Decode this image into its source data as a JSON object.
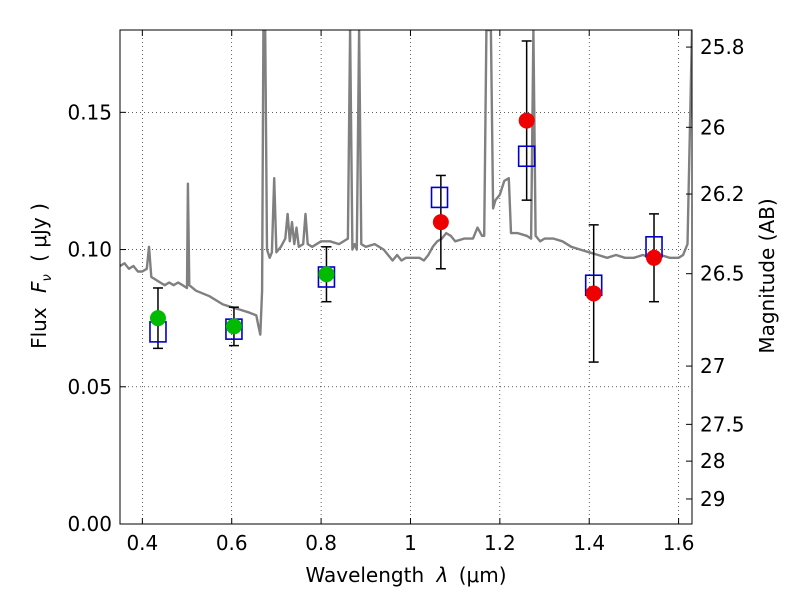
{
  "chart_data": {
    "type": "scatter",
    "xlabel": "Wavelength",
    "xlabel_symbol": "λ",
    "xlabel_unit": "(μm)",
    "ylabel": "Flux",
    "ylabel_symbol": "F_ν",
    "ylabel_unit": "( μJy )",
    "y2label": "Magnitude (AB)",
    "xlim": [
      0.35,
      1.63
    ],
    "ylim": [
      0.0,
      0.18
    ],
    "xticks": [
      {
        "value": 0.4,
        "label": "0.4"
      },
      {
        "value": 0.6,
        "label": "0.6"
      },
      {
        "value": 0.8,
        "label": "0.8"
      },
      {
        "value": 1.0,
        "label": "1"
      },
      {
        "value": 1.2,
        "label": "1.2"
      },
      {
        "value": 1.4,
        "label": "1.4"
      },
      {
        "value": 1.6,
        "label": "1.6"
      }
    ],
    "yticks": [
      {
        "value": 0.0,
        "label": "0.00"
      },
      {
        "value": 0.05,
        "label": "0.05"
      },
      {
        "value": 0.1,
        "label": "0.10"
      },
      {
        "value": 0.15,
        "label": "0.15"
      }
    ],
    "y2ticks": [
      {
        "mag": 25.8,
        "label": "25.8"
      },
      {
        "mag": 26.0,
        "label": "26"
      },
      {
        "mag": 26.2,
        "label": "26.2"
      },
      {
        "mag": 26.5,
        "label": "26.5"
      },
      {
        "mag": 27.0,
        "label": "27"
      },
      {
        "mag": 27.5,
        "label": "27.5"
      },
      {
        "mag": 28.0,
        "label": "28"
      },
      {
        "mag": 29.0,
        "label": "29"
      }
    ],
    "grid": true,
    "spectrum": {
      "color": "#808080",
      "points": [
        [
          0.35,
          0.094
        ],
        [
          0.36,
          0.095
        ],
        [
          0.37,
          0.093
        ],
        [
          0.38,
          0.094
        ],
        [
          0.39,
          0.092
        ],
        [
          0.4,
          0.092
        ],
        [
          0.41,
          0.093
        ],
        [
          0.415,
          0.101
        ],
        [
          0.42,
          0.09
        ],
        [
          0.43,
          0.089
        ],
        [
          0.44,
          0.088
        ],
        [
          0.45,
          0.087
        ],
        [
          0.46,
          0.088
        ],
        [
          0.47,
          0.087
        ],
        [
          0.48,
          0.088
        ],
        [
          0.49,
          0.087
        ],
        [
          0.5,
          0.086
        ],
        [
          0.502,
          0.124
        ],
        [
          0.505,
          0.087
        ],
        [
          0.52,
          0.085
        ],
        [
          0.55,
          0.083
        ],
        [
          0.58,
          0.08
        ],
        [
          0.6,
          0.079
        ],
        [
          0.62,
          0.078
        ],
        [
          0.64,
          0.077
        ],
        [
          0.655,
          0.076
        ],
        [
          0.66,
          0.072
        ],
        [
          0.664,
          0.069
        ],
        [
          0.668,
          0.085
        ],
        [
          0.671,
          0.18
        ],
        [
          0.675,
          0.18
        ],
        [
          0.679,
          0.1
        ],
        [
          0.685,
          0.097
        ],
        [
          0.69,
          0.099
        ],
        [
          0.695,
          0.126
        ],
        [
          0.7,
          0.099
        ],
        [
          0.71,
          0.101
        ],
        [
          0.72,
          0.104
        ],
        [
          0.725,
          0.113
        ],
        [
          0.73,
          0.103
        ],
        [
          0.735,
          0.11
        ],
        [
          0.74,
          0.102
        ],
        [
          0.745,
          0.108
        ],
        [
          0.75,
          0.101
        ],
        [
          0.76,
          0.102
        ],
        [
          0.765,
          0.113
        ],
        [
          0.77,
          0.102
        ],
        [
          0.78,
          0.101
        ],
        [
          0.8,
          0.103
        ],
        [
          0.82,
          0.103
        ],
        [
          0.84,
          0.102
        ],
        [
          0.86,
          0.104
        ],
        [
          0.865,
          0.18
        ],
        [
          0.87,
          0.1
        ],
        [
          0.875,
          0.102
        ],
        [
          0.88,
          0.1
        ],
        [
          0.885,
          0.18
        ],
        [
          0.89,
          0.102
        ],
        [
          0.9,
          0.101
        ],
        [
          0.92,
          0.102
        ],
        [
          0.94,
          0.1
        ],
        [
          0.95,
          0.098
        ],
        [
          0.96,
          0.096
        ],
        [
          0.97,
          0.098
        ],
        [
          0.98,
          0.096
        ],
        [
          0.99,
          0.097
        ],
        [
          1.0,
          0.097
        ],
        [
          1.02,
          0.097
        ],
        [
          1.03,
          0.096
        ],
        [
          1.04,
          0.098
        ],
        [
          1.05,
          0.101
        ],
        [
          1.06,
          0.103
        ],
        [
          1.07,
          0.104
        ],
        [
          1.08,
          0.106
        ],
        [
          1.09,
          0.105
        ],
        [
          1.1,
          0.103
        ],
        [
          1.12,
          0.104
        ],
        [
          1.14,
          0.104
        ],
        [
          1.15,
          0.108
        ],
        [
          1.16,
          0.105
        ],
        [
          1.165,
          0.105
        ],
        [
          1.17,
          0.18
        ],
        [
          1.18,
          0.18
        ],
        [
          1.185,
          0.115
        ],
        [
          1.19,
          0.118
        ],
        [
          1.2,
          0.12
        ],
        [
          1.21,
          0.125
        ],
        [
          1.22,
          0.126
        ],
        [
          1.225,
          0.106
        ],
        [
          1.24,
          0.106
        ],
        [
          1.26,
          0.105
        ],
        [
          1.27,
          0.104
        ],
        [
          1.275,
          0.18
        ],
        [
          1.28,
          0.105
        ],
        [
          1.29,
          0.103
        ],
        [
          1.3,
          0.104
        ],
        [
          1.32,
          0.104
        ],
        [
          1.34,
          0.103
        ],
        [
          1.36,
          0.101
        ],
        [
          1.38,
          0.1
        ],
        [
          1.4,
          0.099
        ],
        [
          1.42,
          0.098
        ],
        [
          1.44,
          0.097
        ],
        [
          1.46,
          0.098
        ],
        [
          1.48,
          0.097
        ],
        [
          1.5,
          0.097
        ],
        [
          1.52,
          0.098
        ],
        [
          1.54,
          0.097
        ],
        [
          1.56,
          0.098
        ],
        [
          1.58,
          0.097
        ],
        [
          1.6,
          0.097
        ],
        [
          1.61,
          0.098
        ],
        [
          1.62,
          0.102
        ],
        [
          1.63,
          0.18
        ]
      ]
    },
    "model_points": {
      "color": "#0000cc",
      "marker": "open-square",
      "points": [
        [
          0.435,
          0.07
        ],
        [
          0.605,
          0.071
        ],
        [
          0.812,
          0.09
        ],
        [
          1.065,
          0.119
        ],
        [
          1.26,
          0.134
        ],
        [
          1.41,
          0.087
        ],
        [
          1.545,
          0.101
        ]
      ]
    },
    "observed_points": [
      {
        "x": 0.435,
        "y": 0.075,
        "err": 0.011,
        "color": "#00bb00"
      },
      {
        "x": 0.605,
        "y": 0.072,
        "err": 0.007,
        "color": "#00bb00"
      },
      {
        "x": 0.812,
        "y": 0.091,
        "err": 0.01,
        "color": "#00bb00"
      },
      {
        "x": 1.068,
        "y": 0.11,
        "err": 0.017,
        "color": "#ee0000"
      },
      {
        "x": 1.26,
        "y": 0.147,
        "err": 0.029,
        "color": "#ee0000"
      },
      {
        "x": 1.41,
        "y": 0.084,
        "err": 0.025,
        "color": "#ee0000"
      },
      {
        "x": 1.545,
        "y": 0.097,
        "err": 0.016,
        "color": "#ee0000"
      }
    ]
  }
}
